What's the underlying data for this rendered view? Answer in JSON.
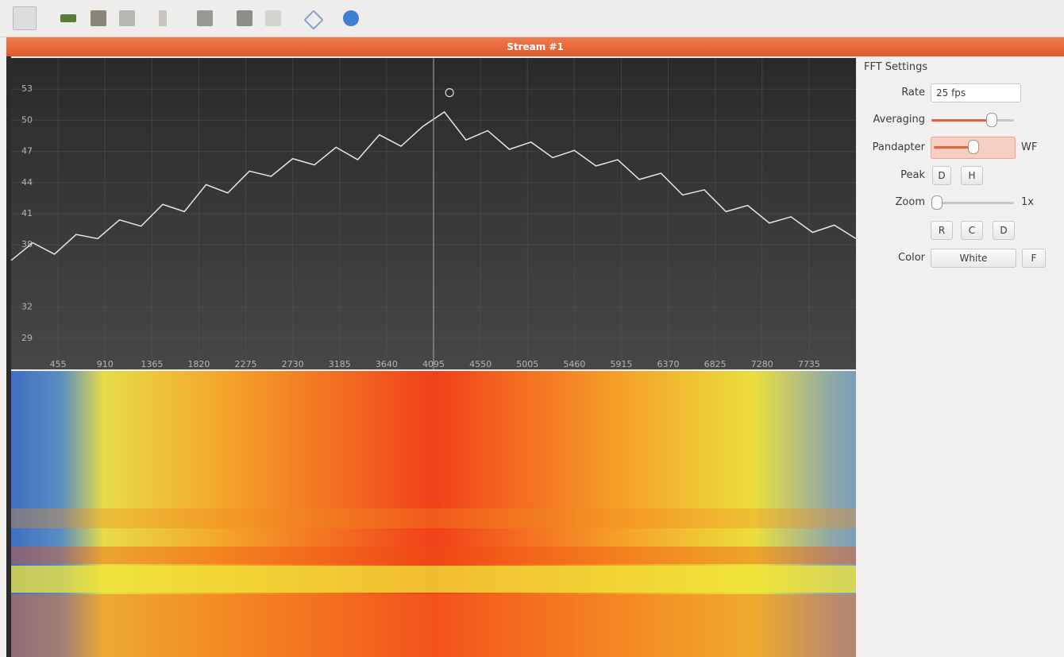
{
  "window": {
    "title": "Stream #1"
  },
  "chart_data": {
    "type": "line",
    "x": [
      0,
      210,
      420,
      630,
      840,
      1050,
      1260,
      1470,
      1680,
      1890,
      2100,
      2310,
      2520,
      2730,
      2940,
      3150,
      3360,
      3570,
      3780,
      3990,
      4200,
      4410,
      4620,
      4830,
      5040,
      5250,
      5460,
      5670,
      5880,
      6090,
      6300,
      6510,
      6720,
      6930,
      7140,
      7350,
      7560,
      7770,
      7980,
      8190
    ],
    "series": [
      {
        "color": "#e6e6e6",
        "values": [
          36.5,
          38.2,
          37.1,
          39.0,
          38.6,
          40.4,
          39.8,
          41.9,
          41.2,
          43.8,
          43.0,
          45.1,
          44.6,
          46.3,
          45.7,
          47.4,
          46.2,
          48.6,
          47.5,
          49.4,
          50.8,
          48.1,
          49.0,
          47.2,
          47.9,
          46.4,
          47.1,
          45.6,
          46.2,
          44.3,
          44.9,
          42.8,
          43.3,
          41.2,
          41.8,
          40.1,
          40.7,
          39.2,
          39.9,
          38.6
        ]
      }
    ],
    "xlim": [
      0,
      8190
    ],
    "xticks": [
      455,
      910,
      1365,
      1820,
      2275,
      2730,
      3185,
      3640,
      4095,
      4550,
      5005,
      5460,
      5915,
      6370,
      6825,
      7280,
      7735
    ],
    "ylim": [
      26,
      56
    ],
    "yticks": [
      29,
      32,
      38,
      41,
      44,
      47,
      50,
      53
    ],
    "grid": true,
    "cursor_x": 4095,
    "peak": {
      "x": 4250,
      "y": 52.2
    }
  },
  "settings": {
    "title": "FFT Settings",
    "rate": {
      "label": "Rate",
      "value": "25 fps"
    },
    "averaging": {
      "label": "Averaging"
    },
    "pandapter": {
      "label": "Pandapter",
      "suffix": "WF"
    },
    "peak": {
      "label": "Peak",
      "buttons": [
        "D",
        "H"
      ]
    },
    "zoom": {
      "label": "Zoom",
      "value": "1x"
    },
    "zoom_buttons": [
      "R",
      "C",
      "D"
    ],
    "color": {
      "label": "Color",
      "value": "White",
      "button": "F"
    }
  }
}
